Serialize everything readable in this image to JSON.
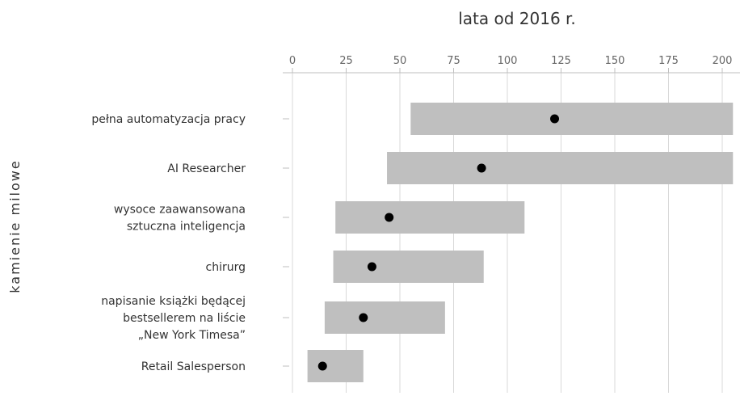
{
  "chart_data": {
    "type": "range",
    "title": "lata od 2016 r.",
    "ylabel": "kamienie milowe",
    "xlim": [
      0,
      205
    ],
    "xticks": [
      0,
      25,
      50,
      75,
      100,
      125,
      150,
      175,
      200
    ],
    "x_tick_labels": [
      "0",
      "25",
      "50",
      "75",
      "100",
      "125",
      "150",
      "175",
      "200"
    ],
    "x_axis_position": "top",
    "grid": true,
    "range_color": "#bfbfbf",
    "point_color": "#000000",
    "categories": [
      [
        "pełna automatyzacja pracy"
      ],
      [
        "AI Researcher"
      ],
      [
        "wysoce zaawansowana",
        "sztuczna inteligencja"
      ],
      [
        "chirurg"
      ],
      [
        "napisanie książki będącej",
        "bestsellerem na liście",
        "„New York Timesa”"
      ],
      [
        "Retail Salesperson"
      ]
    ],
    "series": [
      {
        "low": [
          55,
          44,
          20,
          19,
          15,
          7
        ],
        "high": [
          205,
          205,
          108,
          89,
          71,
          33
        ],
        "median": [
          122,
          88,
          45,
          37,
          33,
          14
        ]
      }
    ]
  }
}
